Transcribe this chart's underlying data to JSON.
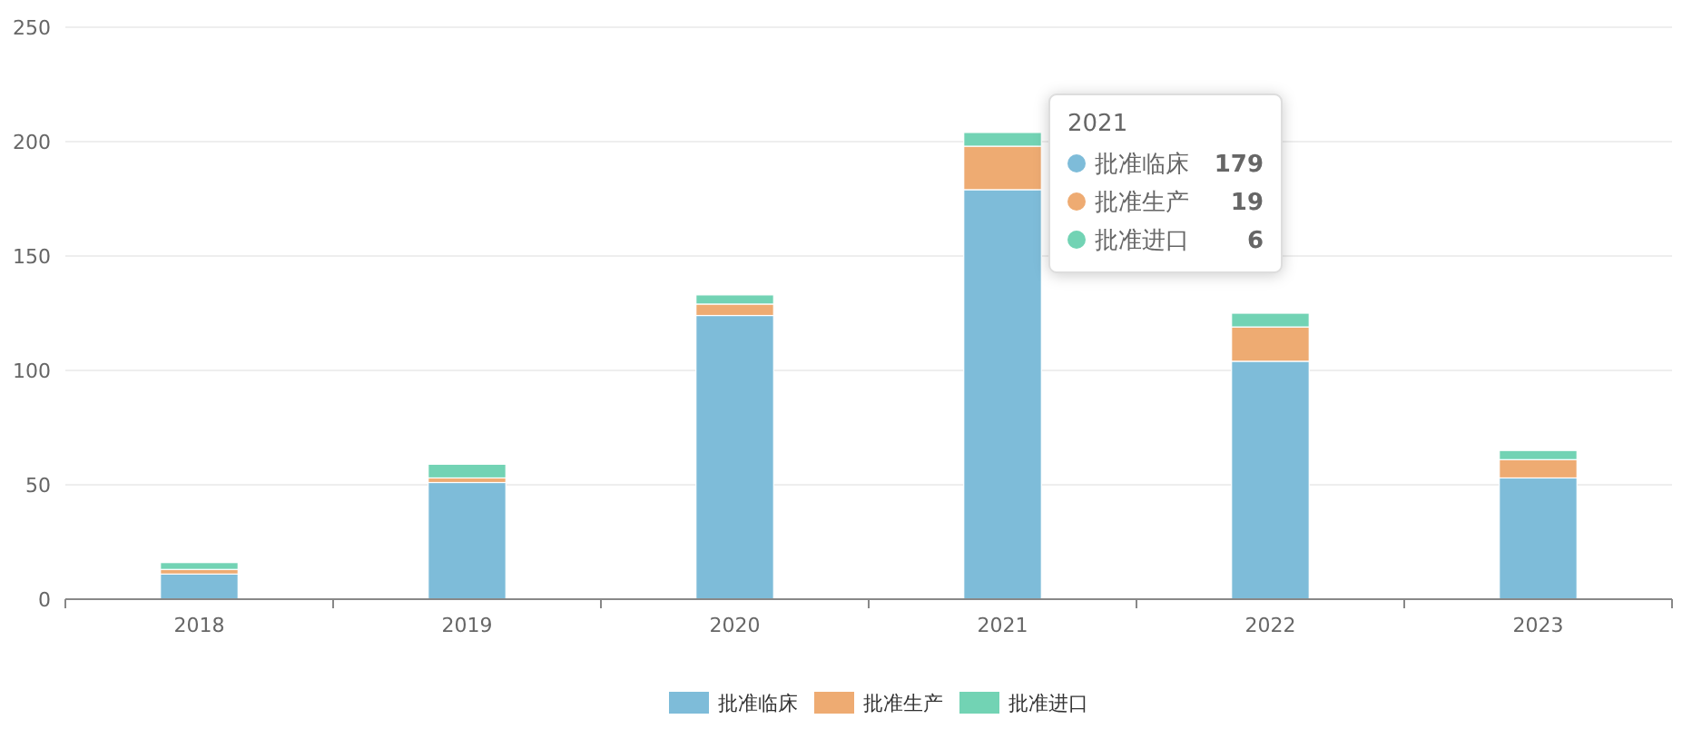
{
  "chart_data": {
    "type": "bar",
    "stacked": true,
    "categories": [
      "2018",
      "2019",
      "2020",
      "2021",
      "2022",
      "2023"
    ],
    "series": [
      {
        "name": "批准临床",
        "color": "#7ebcd9",
        "values": [
          11,
          51,
          124,
          179,
          104,
          53
        ]
      },
      {
        "name": "批准生产",
        "color": "#eeab72",
        "values": [
          2,
          2,
          5,
          19,
          15,
          8
        ]
      },
      {
        "name": "批准进口",
        "color": "#72d3b4",
        "values": [
          3,
          6,
          4,
          6,
          6,
          4
        ]
      }
    ],
    "annotations": [
      "2021",
      "批准临床",
      "179",
      "批准生产",
      "19",
      "批准进口",
      "6"
    ],
    "ylim": [
      0,
      250
    ],
    "yticks": [
      0,
      50,
      100,
      150,
      200,
      250
    ],
    "grid": "y",
    "legend": "bottom"
  }
}
